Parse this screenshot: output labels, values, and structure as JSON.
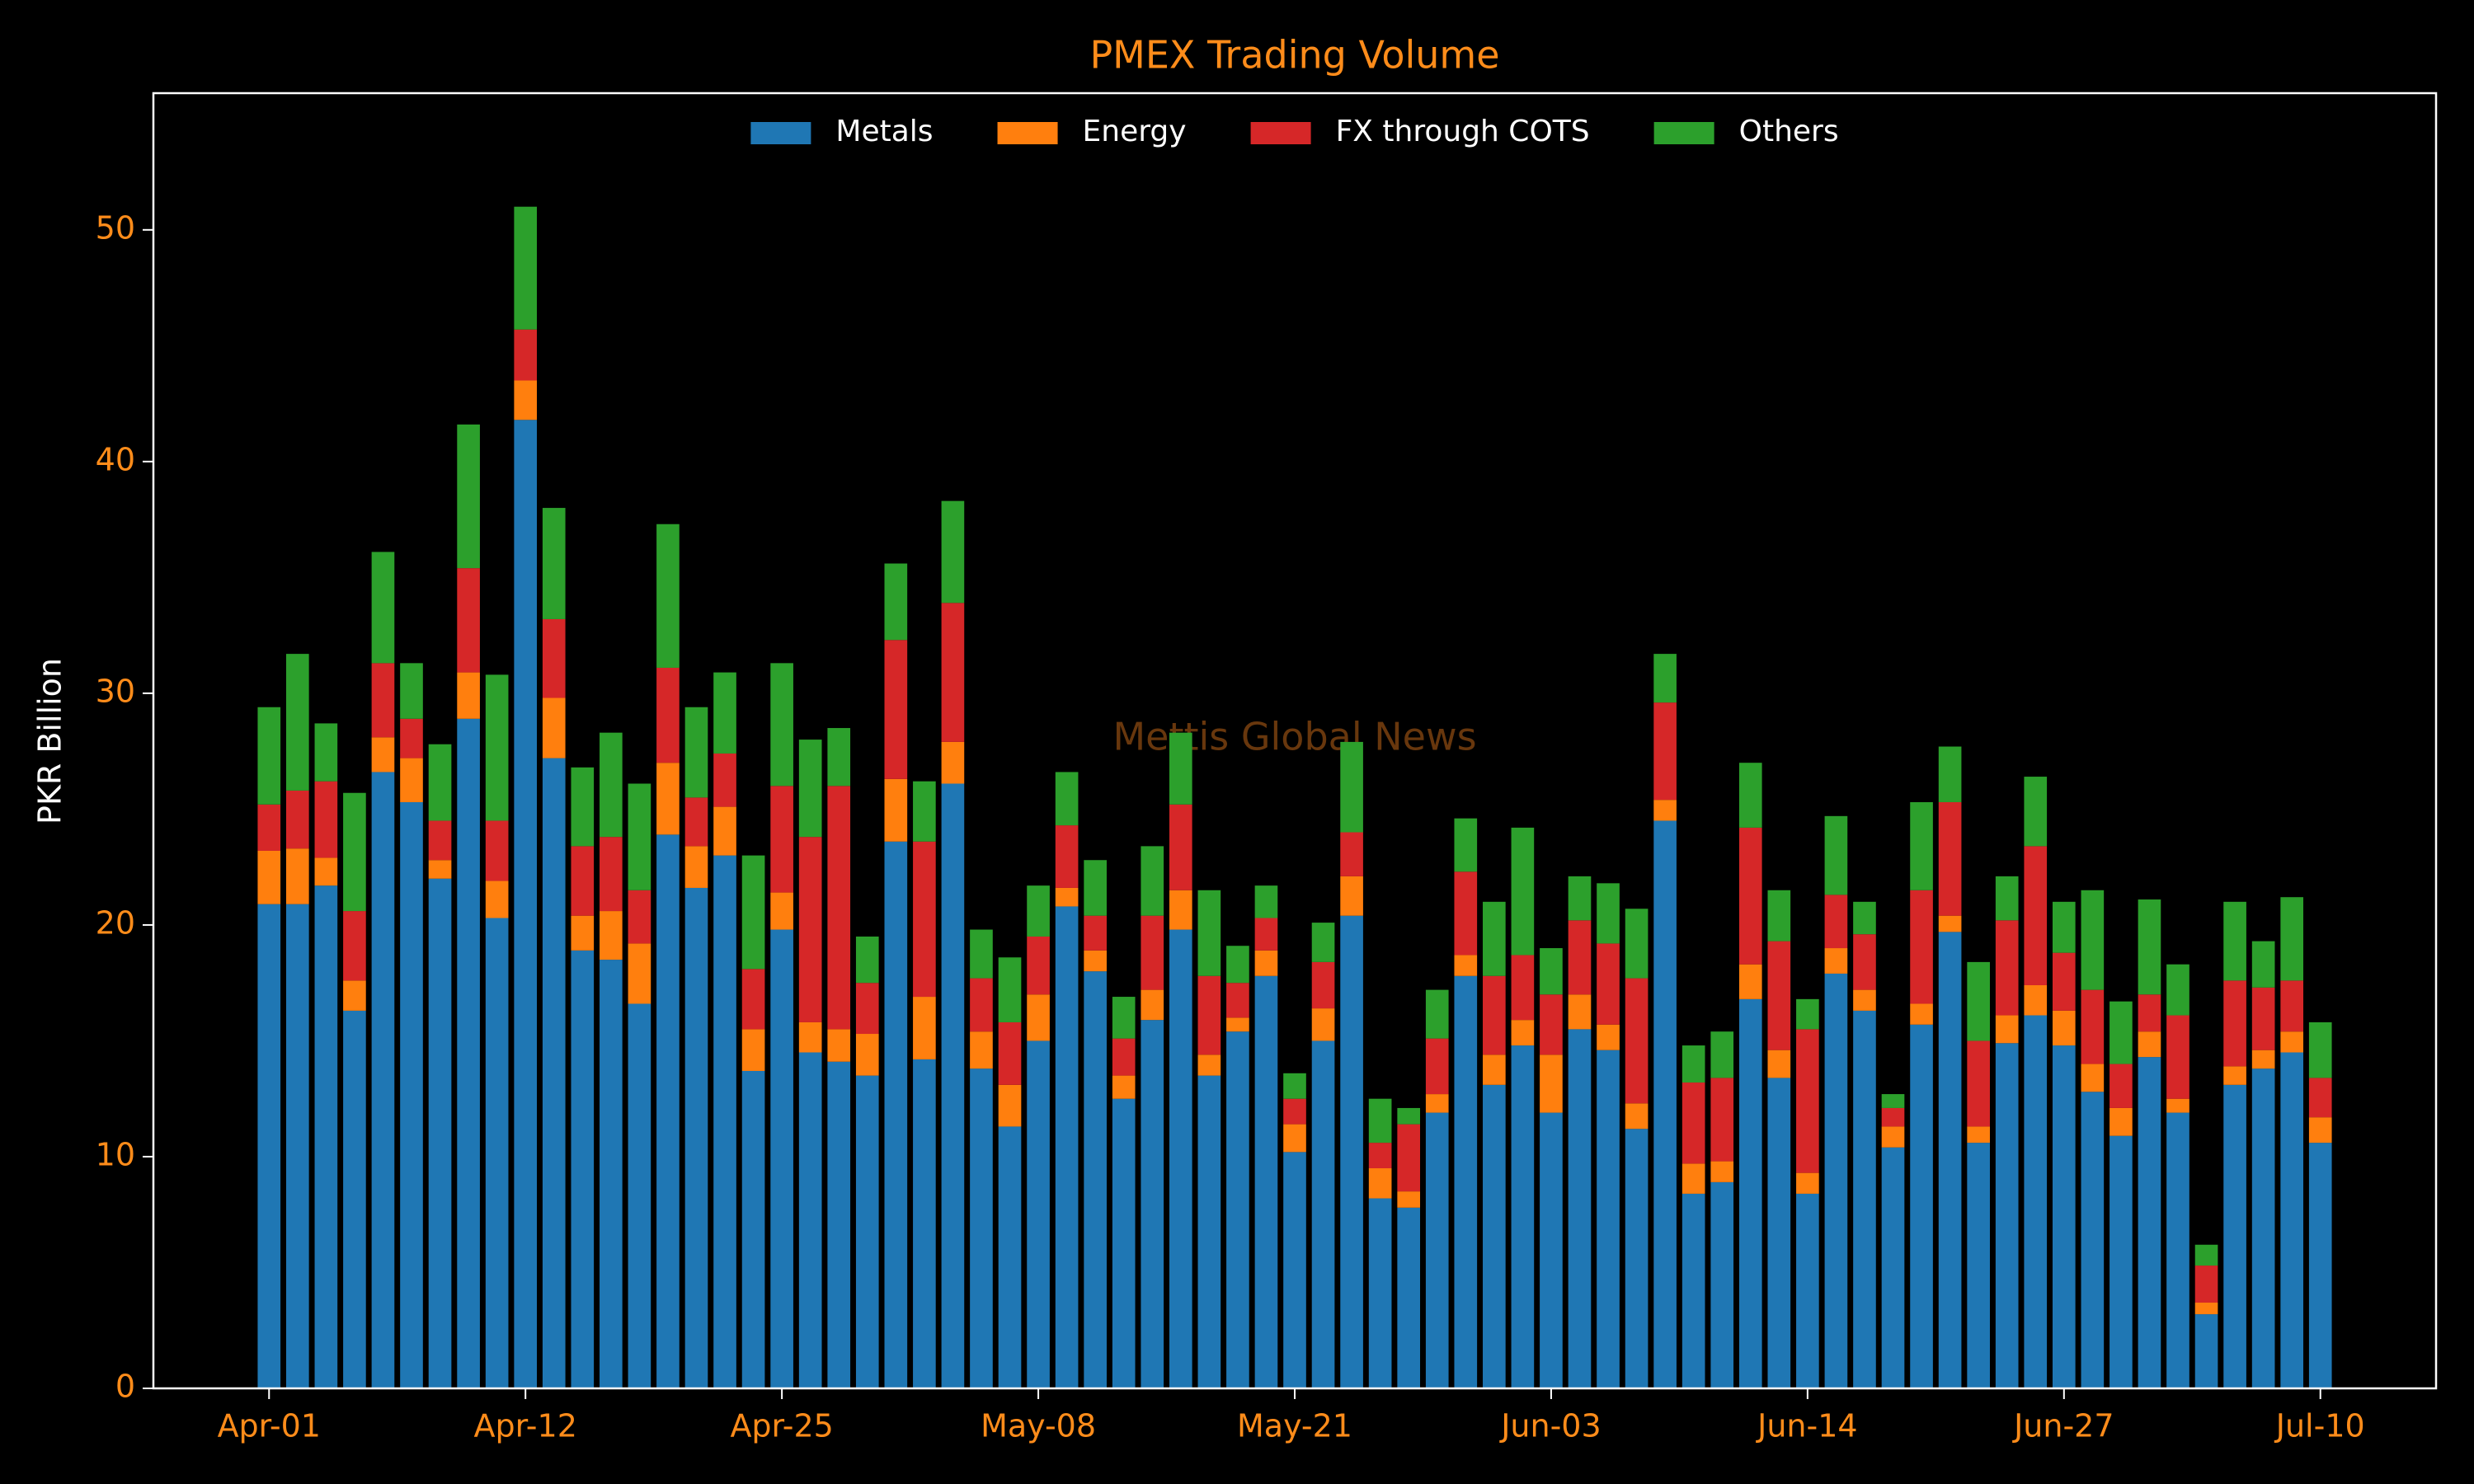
{
  "chart_data": {
    "type": "stacked_bar",
    "title": "PMEX Trading Volume",
    "y_label": "PKR Billion",
    "watermark": "Mettis Global News",
    "legend": "upper center",
    "ylim": [
      0,
      55.9
    ],
    "yticks": [
      0,
      10,
      20,
      30,
      40,
      50
    ],
    "categories": [
      "Apr-01",
      null,
      null,
      null,
      null,
      null,
      null,
      null,
      null,
      "Apr-12",
      null,
      null,
      null,
      null,
      null,
      null,
      null,
      null,
      "Apr-25",
      null,
      null,
      null,
      null,
      null,
      null,
      null,
      null,
      "May-08",
      null,
      null,
      null,
      null,
      null,
      null,
      null,
      null,
      "May-21",
      null,
      null,
      null,
      null,
      null,
      null,
      null,
      null,
      "Jun-03",
      null,
      null,
      null,
      null,
      null,
      null,
      null,
      null,
      "Jun-14",
      null,
      null,
      null,
      null,
      null,
      null,
      null,
      null,
      "Jun-27",
      null,
      null,
      null,
      null,
      null,
      null,
      null,
      null,
      "Jul-10"
    ],
    "series": [
      {
        "name": "Metals",
        "color": "#1f77b4",
        "values": [
          20.9,
          20.9,
          21.7,
          16.3,
          26.6,
          25.3,
          22.0,
          28.9,
          20.3,
          41.8,
          27.2,
          18.9,
          18.5,
          16.6,
          23.9,
          21.6,
          23.0,
          13.7,
          19.8,
          14.5,
          14.1,
          13.5,
          23.6,
          14.2,
          26.1,
          13.8,
          11.3,
          15.0,
          20.8,
          18.0,
          12.5,
          15.9,
          19.8,
          13.5,
          15.4,
          17.8,
          10.2,
          15.0,
          20.4,
          8.2,
          7.8,
          11.9,
          17.8,
          13.1,
          14.8,
          11.9,
          15.5,
          14.6,
          11.2,
          24.5,
          8.4,
          8.9,
          16.8,
          13.4,
          8.4,
          17.9,
          16.3,
          10.4,
          15.7,
          19.7,
          10.6,
          14.9,
          16.1,
          14.8,
          12.8,
          10.9,
          14.3,
          11.9,
          3.2,
          13.1,
          13.8,
          14.5,
          10.6
        ]
      },
      {
        "name": "Energy",
        "color": "#ff7f0e",
        "values": [
          2.3,
          2.4,
          1.2,
          1.3,
          1.5,
          1.9,
          0.8,
          2.0,
          1.6,
          1.7,
          2.6,
          1.5,
          2.1,
          2.6,
          3.1,
          1.8,
          2.1,
          1.8,
          1.6,
          1.3,
          1.4,
          1.8,
          2.7,
          2.7,
          1.8,
          1.6,
          1.8,
          2.0,
          0.8,
          0.9,
          1.0,
          1.3,
          1.7,
          0.9,
          0.6,
          1.1,
          1.2,
          1.4,
          1.7,
          1.3,
          0.7,
          0.8,
          0.9,
          1.3,
          1.1,
          2.5,
          1.5,
          1.1,
          1.1,
          0.9,
          1.3,
          0.9,
          1.5,
          1.2,
          0.9,
          1.1,
          0.9,
          0.9,
          0.9,
          0.7,
          0.7,
          1.2,
          1.3,
          1.5,
          1.2,
          1.2,
          1.1,
          0.6,
          0.5,
          0.8,
          0.8,
          0.9,
          1.1
        ]
      },
      {
        "name": "FX through COTS",
        "color": "#d62728",
        "values": [
          2.0,
          2.5,
          3.3,
          3.0,
          3.2,
          1.7,
          1.7,
          4.5,
          2.6,
          2.2,
          3.4,
          3.0,
          3.2,
          2.3,
          4.1,
          2.1,
          2.3,
          2.6,
          4.6,
          8.0,
          10.5,
          2.2,
          6.0,
          6.7,
          6.0,
          2.3,
          2.7,
          2.5,
          2.7,
          1.5,
          1.6,
          3.2,
          3.7,
          3.4,
          1.5,
          1.4,
          1.1,
          2.0,
          1.9,
          1.1,
          2.9,
          2.4,
          3.6,
          3.4,
          2.8,
          2.6,
          3.2,
          3.5,
          5.4,
          4.2,
          3.5,
          3.6,
          5.9,
          4.7,
          6.2,
          2.3,
          2.4,
          0.8,
          4.9,
          4.9,
          3.7,
          4.1,
          6.0,
          2.5,
          3.2,
          1.9,
          1.6,
          3.6,
          1.6,
          3.7,
          2.7,
          2.2,
          1.7
        ]
      },
      {
        "name": "Others",
        "color": "#2ca02c",
        "values": [
          4.2,
          5.9,
          2.5,
          5.1,
          4.8,
          2.4,
          3.3,
          6.2,
          6.3,
          5.3,
          4.8,
          3.4,
          4.5,
          4.6,
          6.2,
          3.9,
          3.5,
          4.9,
          5.3,
          4.2,
          2.5,
          2.0,
          3.3,
          2.6,
          4.4,
          2.1,
          2.8,
          2.2,
          2.3,
          2.4,
          1.8,
          3.0,
          3.1,
          3.7,
          1.6,
          1.4,
          1.1,
          1.7,
          3.9,
          1.9,
          0.7,
          2.1,
          2.3,
          3.2,
          5.5,
          2.0,
          1.9,
          2.6,
          3.0,
          2.1,
          1.6,
          2.0,
          2.8,
          2.2,
          1.3,
          3.4,
          1.4,
          0.6,
          3.8,
          2.4,
          3.4,
          1.9,
          3.0,
          2.2,
          4.3,
          2.7,
          4.1,
          2.2,
          0.9,
          3.4,
          2.0,
          3.6,
          2.4
        ]
      }
    ]
  }
}
